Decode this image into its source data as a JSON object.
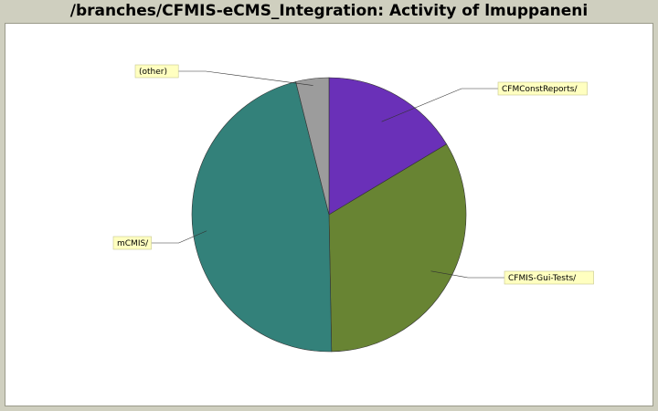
{
  "title": "/branches/CFMIS-eCMS_Integration: Activity of lmuppaneni",
  "chart_data": {
    "type": "pie",
    "title": "/branches/CFMIS-eCMS_Integration: Activity of lmuppaneni",
    "legend": "none",
    "slices": [
      {
        "label": "CFMConstReports/",
        "value": 16.4,
        "color": "#6a30b8"
      },
      {
        "label": "CFMIS-Gui-Tests/",
        "value": 33.3,
        "color": "#688433"
      },
      {
        "label": "mCMIS/",
        "value": 46.4,
        "color": "#33817a"
      },
      {
        "label": "(other)",
        "value": 3.9,
        "color": "#9c9c9c"
      }
    ]
  }
}
